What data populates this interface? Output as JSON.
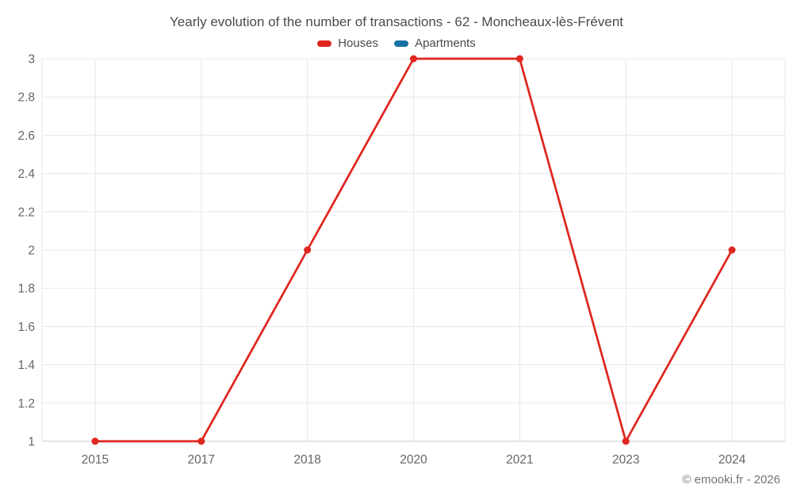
{
  "chart_data": {
    "type": "line",
    "title": "Yearly evolution of the number of transactions - 62 - Moncheaux-lès-Frévent",
    "categories": [
      "2015",
      "2017",
      "2018",
      "2020",
      "2021",
      "2023",
      "2024"
    ],
    "series": [
      {
        "name": "Houses",
        "color": "#df261f",
        "values": [
          1,
          1,
          2,
          3,
          3,
          1,
          2
        ]
      },
      {
        "name": "Apartments",
        "color": "#1672a3",
        "values": []
      }
    ],
    "ylim": [
      1,
      3
    ],
    "yticks": [
      3,
      2.8,
      2.6,
      2.4,
      2.2,
      2,
      1.8,
      1.6,
      1.4,
      1.2,
      1
    ],
    "xlabel": "",
    "ylabel": "",
    "grid": true,
    "legend_position": "top",
    "colors": {
      "grid": "#e7e7e7",
      "axis": "#cccccc",
      "tick_text": "#666666",
      "title_text": "#4a4a4a"
    }
  },
  "footer": {
    "copyright": "© emooki.fr - 2026"
  }
}
